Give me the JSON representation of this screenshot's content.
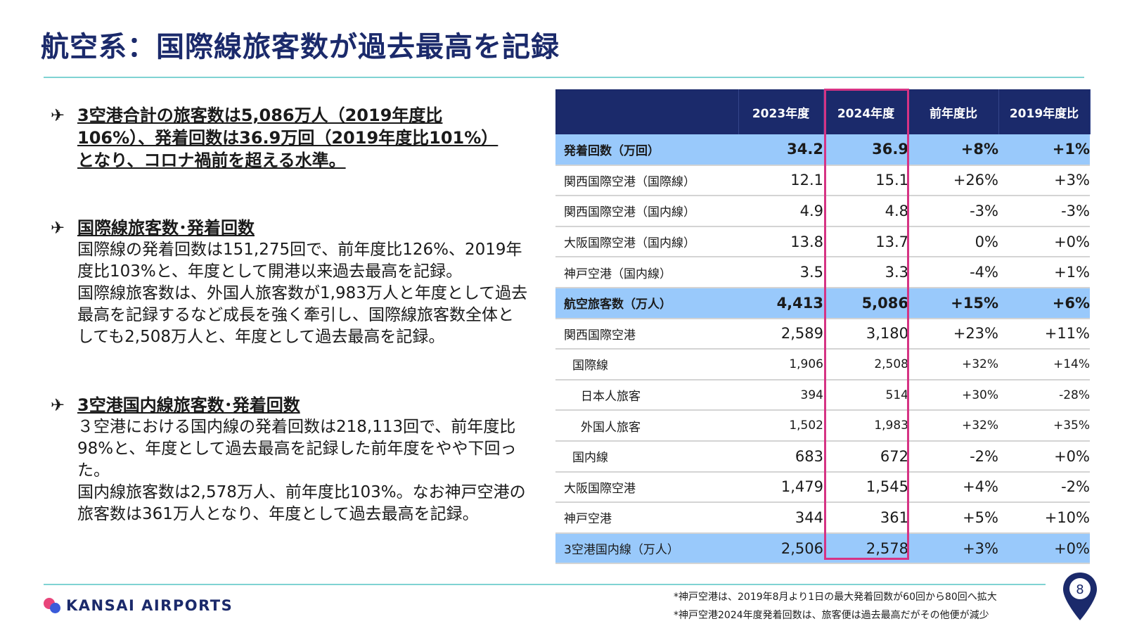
{
  "title": "航空系：国際線旅客数が過去最高を記録",
  "left": {
    "bullet_icon": "airplane-icon",
    "b1": {
      "head": "3空港合計の旅客数は5,086万人（2019年度比106%）、発着回数は36.9万回（2019年度比101%）となり、コロナ禍前を超える水準。"
    },
    "b2": {
      "head": "国際線旅客数･発着回数",
      "p1": "国際線の発着回数は151,275回で、前年度比126%、2019年度比103%と、年度として開港以来過去最高を記録。",
      "p2": "国際線旅客数は、外国人旅客数が1,983万人と年度として過去最高を記録するなど成長を強く牽引し、国際線旅客数全体としても2,508万人と、年度として過去最高を記録。"
    },
    "b3": {
      "head": "3空港国内線旅客数･発着回数",
      "p1": "３空港における国内線の発着回数は218,113回で、前年度比98%と、年度として過去最高を記録した前年度をやや下回った。",
      "p2": "国内線旅客数は2,578万人、前年度比103%。なお神戸空港の旅客数は361万人となり、年度として過去最高を記録。"
    }
  },
  "table": {
    "headers": [
      "",
      "2023年度",
      "2024年度",
      "前年度比",
      "2019年度比"
    ],
    "rows": [
      [
        "発着回数（万回）",
        "34.2",
        "36.9",
        "+8%",
        "+1%"
      ],
      [
        "関西国際空港（国際線）",
        "12.1",
        "15.1",
        "+26%",
        "+3%"
      ],
      [
        "関西国際空港（国内線）",
        "4.9",
        "4.8",
        "-3%",
        "-3%"
      ],
      [
        "大阪国際空港（国内線）",
        "13.8",
        "13.7",
        "0%",
        "+0%"
      ],
      [
        "神戸空港（国内線）",
        "3.5",
        "3.3",
        "-4%",
        "+1%"
      ],
      [
        "航空旅客数（万人）",
        "4,413",
        "5,086",
        "+15%",
        "+6%"
      ],
      [
        "関西国際空港",
        "2,589",
        "3,180",
        "+23%",
        "+11%"
      ],
      [
        "国際線",
        "1,906",
        "2,508",
        "+32%",
        "+14%"
      ],
      [
        "日本人旅客",
        "394",
        "514",
        "+30%",
        "-28%"
      ],
      [
        "外国人旅客",
        "1,502",
        "1,983",
        "+32%",
        "+35%"
      ],
      [
        "国内線",
        "683",
        "672",
        "-2%",
        "+0%"
      ],
      [
        "大阪国際空港",
        "1,479",
        "1,545",
        "+4%",
        "-2%"
      ],
      [
        "神戸空港",
        "344",
        "361",
        "+5%",
        "+10%"
      ],
      [
        "3空港国内線（万人）",
        "2,506",
        "2,578",
        "+3%",
        "+0%"
      ]
    ]
  },
  "footer": {
    "logo_text": "KANSAI AIRPORTS",
    "note1": "*神戸空港は、2019年8月より1日の最大発着回数が60回から80回へ拡大",
    "note2": "*神戸空港2024年度発着回数は、旅客便は過去最高だがその他便が減少",
    "page_number": "8"
  },
  "colors": {
    "navy": "#1b2a6b",
    "highlight_row": "#99c9fb",
    "frame": "#d63384",
    "rule": "#7fd3d3"
  }
}
